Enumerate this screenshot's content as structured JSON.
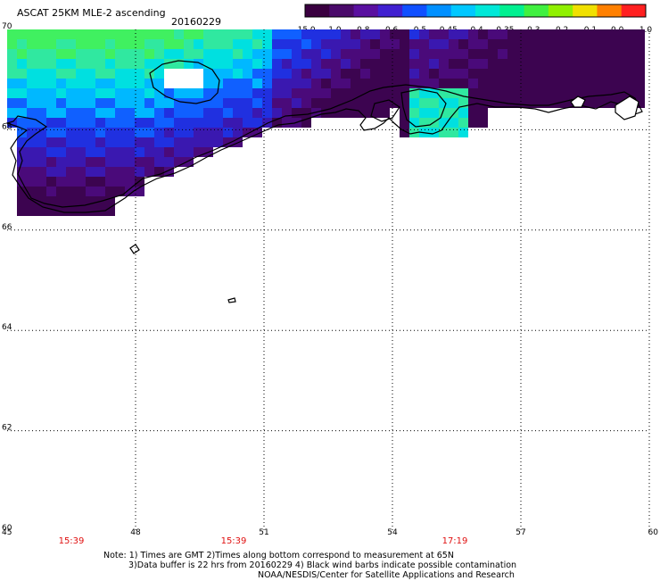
{
  "header": {
    "title": "ASCAT 25KM MLE-2 ascending",
    "date": "20160229"
  },
  "colorbar": {
    "labels": [
      "-15.0",
      "-1.0",
      "-0.8",
      "-0.6",
      "-0.5",
      "-0.45",
      "-0.4",
      "-0.35",
      "-0.3",
      "-0.2",
      "-0.1",
      "0.0",
      "1.0"
    ],
    "colors": [
      "#3a0040",
      "#4a0a6a",
      "#5a10a0",
      "#4020d0",
      "#1050ff",
      "#0090ff",
      "#00c8ff",
      "#00e8d8",
      "#00f090",
      "#40f040",
      "#90f000",
      "#f0e000",
      "#ff8000",
      "#ff2020"
    ]
  },
  "map": {
    "lat_labels": [
      "70",
      "68",
      "66",
      "64",
      "62",
      "60"
    ],
    "lon_labels": [
      "45",
      "48",
      "51",
      "54",
      "57",
      "60"
    ],
    "time_labels": [
      "15:39",
      "15:39",
      "17:19"
    ],
    "colors": {
      "coast": "#000000",
      "grid": "#000000",
      "time_text": "#e01010"
    }
  },
  "footer": {
    "note_line1": "Note: 1) Times are GMT 2)Times along bottom correspond to measurement at 65N",
    "note_line2": "3)Data buffer is 22 hrs from 20160229 4) Black wind barbs indicate possible contamination",
    "credit": "NOAA/NESDIS/Center for Satellite Applications and Research"
  }
}
